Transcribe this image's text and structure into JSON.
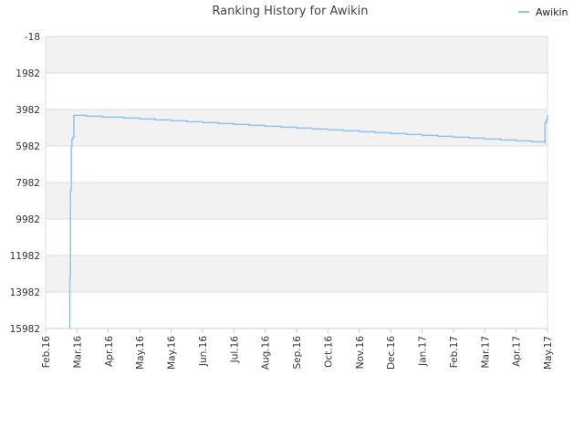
{
  "chart_data": {
    "type": "line",
    "title": "Ranking History for Awikin",
    "xlabel": "",
    "ylabel": "",
    "y_inverted": true,
    "ylim": [
      -18,
      15982
    ],
    "y_ticks": [
      "-18",
      "1982",
      "3982",
      "5982",
      "7982",
      "9982",
      "11982",
      "13982",
      "15982"
    ],
    "x_ticks": [
      "Feb.16",
      "Mar.16",
      "Apr.16",
      "May.16",
      "May.16",
      "Jun.16",
      "Jul.16",
      "Aug.16",
      "Sep.16",
      "Oct.16",
      "Nov.16",
      "Dec.16",
      "Jan.17",
      "Feb.17",
      "Mar.17",
      "Apr.17",
      "May.17"
    ],
    "grid": true,
    "legend_position": "top-right",
    "series": [
      {
        "name": "Awikin",
        "color": "#90c4ee",
        "x": [
          0.75,
          0.77,
          0.79,
          0.82,
          0.84,
          0.87,
          0.9,
          1.1,
          1.3,
          1.5,
          1.8,
          2.2,
          2.5,
          3.0,
          3.5,
          4.0,
          4.5,
          5.0,
          5.5,
          6.0,
          6.5,
          7.0,
          7.5,
          8.0,
          8.5,
          9.0,
          9.5,
          10.0,
          10.5,
          11.0,
          11.5,
          12.0,
          12.5,
          13.0,
          13.5,
          14.0,
          14.5,
          15.0,
          15.5,
          15.9,
          15.92,
          15.96,
          16.0
        ],
        "values": [
          15982,
          13200,
          8400,
          6000,
          5600,
          5500,
          4300,
          4300,
          4350,
          4350,
          4400,
          4400,
          4450,
          4500,
          4550,
          4600,
          4650,
          4700,
          4750,
          4800,
          4850,
          4900,
          4950,
          5000,
          5050,
          5100,
          5150,
          5200,
          5250,
          5300,
          5350,
          5400,
          5450,
          5500,
          5550,
          5600,
          5650,
          5700,
          5750,
          5800,
          4700,
          4550,
          4300
        ]
      }
    ]
  }
}
